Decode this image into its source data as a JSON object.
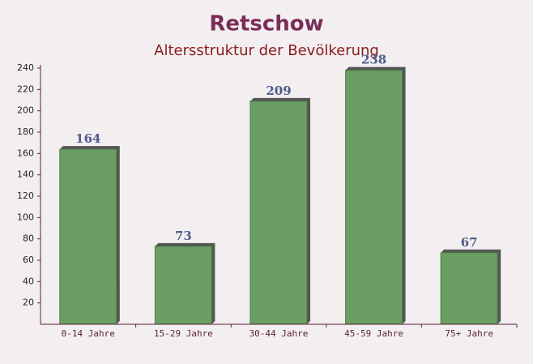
{
  "chart_data": {
    "type": "bar",
    "title": "Retschow",
    "subtitle": "Altersstruktur der Bevölkerung",
    "categories": [
      "0-14 Jahre",
      "15-29 Jahre",
      "30-44 Jahre",
      "45-59 Jahre",
      "75+ Jahre"
    ],
    "values": [
      164,
      73,
      209,
      238,
      67
    ],
    "color": "#6b9e63",
    "ylim": [
      0,
      240
    ],
    "yticks": [
      20,
      40,
      60,
      80,
      100,
      120,
      140,
      160,
      180,
      200,
      220,
      240
    ],
    "grid": false
  }
}
